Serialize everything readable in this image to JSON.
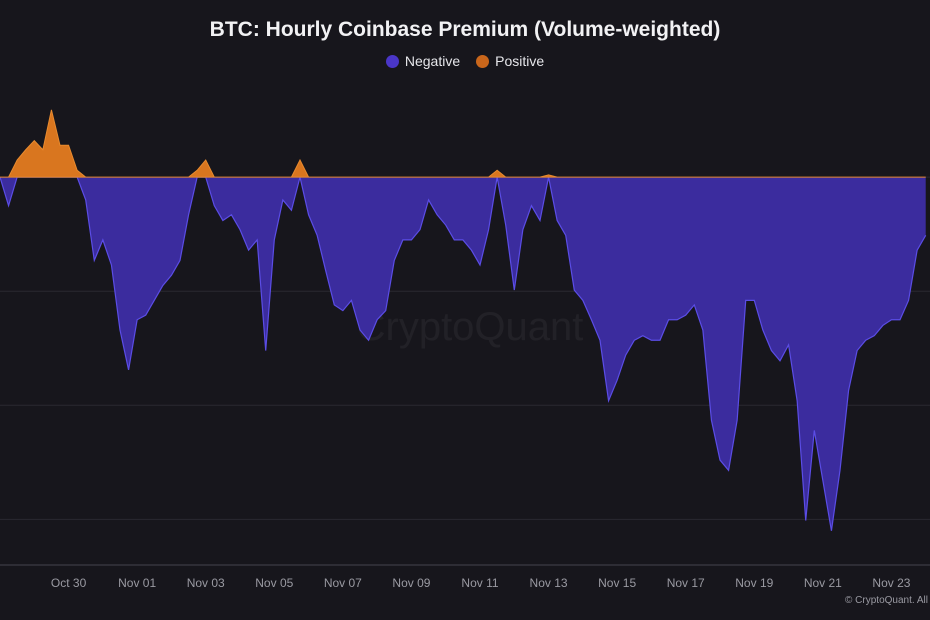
{
  "colors": {
    "background": "#17161c",
    "negative": "#3b2c9e",
    "negative_line": "#5b4de6",
    "positive": "#d9761f",
    "grid": "#2a2930",
    "tick": "#9a9aa2"
  },
  "watermark": "CryptoQuant",
  "copyright": "© CryptoQuant. All",
  "chart_data": {
    "type": "area",
    "title": "BTC: Hourly Coinbase Premium (Volume-weighted)",
    "xlabel": "",
    "ylabel": "",
    "legend": {
      "placement": "top-center",
      "entries": [
        {
          "label": "Negative",
          "color": "#3b2c9e"
        },
        {
          "label": "Positive",
          "color": "#d9761f"
        }
      ]
    },
    "grid": {
      "horizontal": true,
      "vertical": false
    },
    "xlim": [
      "Oct 28 00:00",
      "Nov 24 03:00"
    ],
    "ylim": [
      -3.4,
      0.72
    ],
    "y_gridlines": [
      0,
      -1,
      -2,
      -3
    ],
    "x_ticks": [
      "Oct 30",
      "Nov 01",
      "Nov 03",
      "Nov 05",
      "Nov 07",
      "Nov 09",
      "Nov 11",
      "Nov 13",
      "Nov 15",
      "Nov 17",
      "Nov 19",
      "Nov 21",
      "Nov 23"
    ],
    "points": [
      [
        "Oct 28 00:00",
        0
      ],
      [
        "Oct 28 06:00",
        -0.25
      ],
      [
        "Oct 28 12:00",
        0.15
      ],
      [
        "Oct 28 18:00",
        0.24
      ],
      [
        "Oct 29 00:00",
        0.32
      ],
      [
        "Oct 29 06:00",
        0.24
      ],
      [
        "Oct 29 12:00",
        0.59
      ],
      [
        "Oct 29 18:00",
        0.28
      ],
      [
        "Oct 30 00:00",
        0.28
      ],
      [
        "Oct 30 06:00",
        0.06
      ],
      [
        "Oct 30 12:00",
        -0.2
      ],
      [
        "Oct 30 18:00",
        -0.73
      ],
      [
        "Oct 31 00:00",
        -0.55
      ],
      [
        "Oct 31 06:00",
        -0.77
      ],
      [
        "Oct 31 12:00",
        -1.34
      ],
      [
        "Oct 31 18:00",
        -1.69
      ],
      [
        "Nov 01 00:00",
        -1.25
      ],
      [
        "Nov 01 06:00",
        -1.21
      ],
      [
        "Nov 01 12:00",
        -1.08
      ],
      [
        "Nov 01 18:00",
        -0.95
      ],
      [
        "Nov 02 00:00",
        -0.86
      ],
      [
        "Nov 02 06:00",
        -0.73
      ],
      [
        "Nov 02 12:00",
        -0.33
      ],
      [
        "Nov 02 18:00",
        0.06
      ],
      [
        "Nov 03 00:00",
        0.15
      ],
      [
        "Nov 03 06:00",
        -0.25
      ],
      [
        "Nov 03 12:00",
        -0.38
      ],
      [
        "Nov 03 18:00",
        -0.33
      ],
      [
        "Nov 04 00:00",
        -0.46
      ],
      [
        "Nov 04 06:00",
        -0.64
      ],
      [
        "Nov 04 12:00",
        -0.55
      ],
      [
        "Nov 04 18:00",
        -1.52
      ],
      [
        "Nov 05 00:00",
        -0.55
      ],
      [
        "Nov 05 06:00",
        -0.2
      ],
      [
        "Nov 05 12:00",
        -0.29
      ],
      [
        "Nov 05 18:00",
        0.15
      ],
      [
        "Nov 06 00:00",
        -0.33
      ],
      [
        "Nov 06 06:00",
        -0.51
      ],
      [
        "Nov 06 12:00",
        -0.82
      ],
      [
        "Nov 06 18:00",
        -1.12
      ],
      [
        "Nov 07 00:00",
        -1.17
      ],
      [
        "Nov 07 06:00",
        -1.08
      ],
      [
        "Nov 07 12:00",
        -1.34
      ],
      [
        "Nov 07 18:00",
        -1.43
      ],
      [
        "Nov 08 00:00",
        -1.25
      ],
      [
        "Nov 08 06:00",
        -1.17
      ],
      [
        "Nov 08 12:00",
        -0.73
      ],
      [
        "Nov 08 18:00",
        -0.55
      ],
      [
        "Nov 09 00:00",
        -0.55
      ],
      [
        "Nov 09 06:00",
        -0.46
      ],
      [
        "Nov 09 12:00",
        -0.2
      ],
      [
        "Nov 09 18:00",
        -0.33
      ],
      [
        "Nov 10 00:00",
        -0.42
      ],
      [
        "Nov 10 06:00",
        -0.55
      ],
      [
        "Nov 10 12:00",
        -0.55
      ],
      [
        "Nov 10 18:00",
        -0.64
      ],
      [
        "Nov 11 00:00",
        -0.77
      ],
      [
        "Nov 11 06:00",
        -0.46
      ],
      [
        "Nov 11 12:00",
        0.06
      ],
      [
        "Nov 11 18:00",
        -0.42
      ],
      [
        "Nov 12 00:00",
        -0.99
      ],
      [
        "Nov 12 06:00",
        -0.46
      ],
      [
        "Nov 12 12:00",
        -0.25
      ],
      [
        "Nov 12 18:00",
        -0.38
      ],
      [
        "Nov 13 00:00",
        0.02
      ],
      [
        "Nov 13 06:00",
        -0.38
      ],
      [
        "Nov 13 12:00",
        -0.51
      ],
      [
        "Nov 13 18:00",
        -0.99
      ],
      [
        "Nov 14 00:00",
        -1.08
      ],
      [
        "Nov 14 06:00",
        -1.25
      ],
      [
        "Nov 14 12:00",
        -1.43
      ],
      [
        "Nov 14 18:00",
        -1.96
      ],
      [
        "Nov 15 00:00",
        -1.78
      ],
      [
        "Nov 15 06:00",
        -1.56
      ],
      [
        "Nov 15 12:00",
        -1.43
      ],
      [
        "Nov 15 18:00",
        -1.39
      ],
      [
        "Nov 16 00:00",
        -1.43
      ],
      [
        "Nov 16 06:00",
        -1.43
      ],
      [
        "Nov 16 12:00",
        -1.25
      ],
      [
        "Nov 16 18:00",
        -1.25
      ],
      [
        "Nov 17 00:00",
        -1.21
      ],
      [
        "Nov 17 06:00",
        -1.12
      ],
      [
        "Nov 17 12:00",
        -1.34
      ],
      [
        "Nov 17 18:00",
        -2.13
      ],
      [
        "Nov 18 00:00",
        -2.48
      ],
      [
        "Nov 18 06:00",
        -2.57
      ],
      [
        "Nov 18 12:00",
        -2.13
      ],
      [
        "Nov 18 18:00",
        -1.08
      ],
      [
        "Nov 19 00:00",
        -1.08
      ],
      [
        "Nov 19 06:00",
        -1.34
      ],
      [
        "Nov 19 12:00",
        -1.52
      ],
      [
        "Nov 19 18:00",
        -1.61
      ],
      [
        "Nov 20 00:00",
        -1.47
      ],
      [
        "Nov 20 06:00",
        -1.96
      ],
      [
        "Nov 20 12:00",
        -3.01
      ],
      [
        "Nov 20 18:00",
        -2.22
      ],
      [
        "Nov 21 00:00",
        -2.66
      ],
      [
        "Nov 21 06:00",
        -3.1
      ],
      [
        "Nov 21 12:00",
        -2.57
      ],
      [
        "Nov 21 18:00",
        -1.87
      ],
      [
        "Nov 22 00:00",
        -1.52
      ],
      [
        "Nov 22 06:00",
        -1.43
      ],
      [
        "Nov 22 12:00",
        -1.39
      ],
      [
        "Nov 22 18:00",
        -1.3
      ],
      [
        "Nov 23 00:00",
        -1.25
      ],
      [
        "Nov 23 06:00",
        -1.25
      ],
      [
        "Nov 23 12:00",
        -1.08
      ],
      [
        "Nov 23 18:00",
        -0.64
      ],
      [
        "Nov 24 00:00",
        -0.51
      ]
    ]
  }
}
